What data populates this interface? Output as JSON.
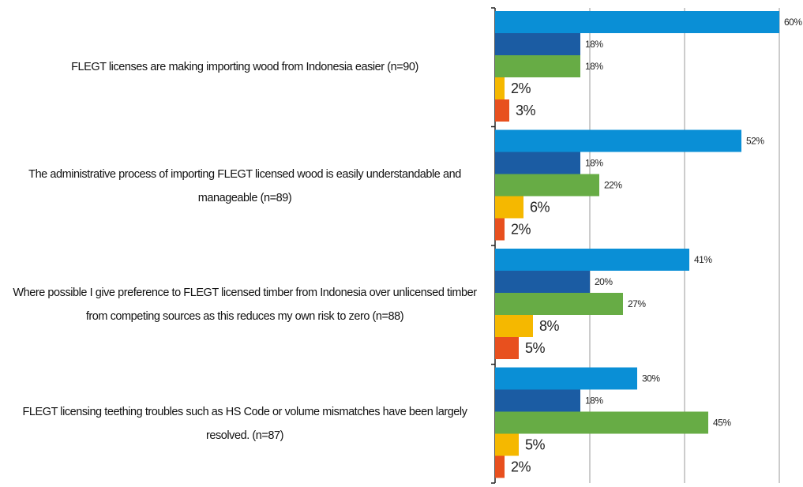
{
  "chart_data": {
    "type": "hbar",
    "categories": [
      "FLEGT licenses are making importing wood from Indonesia easier (n=90)",
      "The administrative process of importing FLEGT licensed wood is easily understandable and manageable (n=89)",
      "Where possible I give preference to FLEGT licensed timber from Indonesia over unlicensed timber from competing sources as this reduces my own risk to zero (n=88)",
      "FLEGT licensing teething troubles such as HS Code or volume mismatches have been largely resolved. (n=87)"
    ],
    "series": [
      {
        "color": "#0a8fd6",
        "values": [
          60,
          52,
          41,
          30
        ],
        "value_labels": [
          "60%",
          "52%",
          "41%",
          "30%"
        ]
      },
      {
        "color": "#1b5ca3",
        "values": [
          18,
          18,
          20,
          18
        ],
        "value_labels": [
          "18%",
          "18%",
          "20%",
          "18%"
        ]
      },
      {
        "color": "#67ac45",
        "values": [
          18,
          22,
          27,
          45
        ],
        "value_labels": [
          "18%",
          "22%",
          "27%",
          "45%"
        ]
      },
      {
        "color": "#f5b800",
        "values": [
          2,
          6,
          8,
          5
        ],
        "value_labels": [
          "2%",
          "6%",
          "8%",
          "5%"
        ]
      },
      {
        "color": "#e8501e",
        "values": [
          3,
          2,
          5,
          2
        ],
        "value_labels": [
          "3%",
          "2%",
          "5%",
          "2%"
        ]
      }
    ],
    "xlim": [
      0,
      60
    ],
    "xticks": [
      0,
      20,
      40,
      60
    ],
    "grid": true
  }
}
